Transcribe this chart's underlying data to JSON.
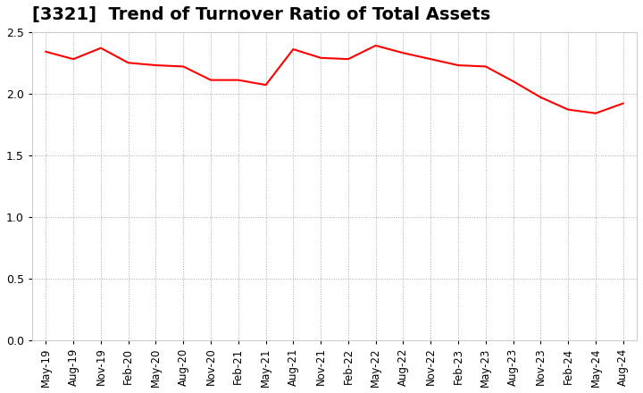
{
  "title": "[3321]  Trend of Turnover Ratio of Total Assets",
  "title_fontsize": 14,
  "line_color": "#FF0000",
  "line_width": 1.5,
  "background_color": "#FFFFFF",
  "plot_background_color": "#FFFFFF",
  "ylim": [
    0.0,
    2.5
  ],
  "yticks": [
    0.0,
    0.5,
    1.0,
    1.5,
    2.0,
    2.5
  ],
  "grid_color": "#AAAAAA",
  "grid_linestyle": "dotted",
  "x_labels": [
    "May-19",
    "Aug-19",
    "Nov-19",
    "Feb-20",
    "May-20",
    "Aug-20",
    "Nov-20",
    "Feb-21",
    "May-21",
    "Aug-21",
    "Nov-21",
    "Feb-22",
    "May-22",
    "Aug-22",
    "Nov-22",
    "Feb-23",
    "May-23",
    "Aug-23",
    "Nov-23",
    "Feb-24",
    "May-24",
    "Aug-24"
  ],
  "values": [
    2.34,
    2.28,
    2.37,
    2.25,
    2.23,
    2.22,
    2.11,
    2.11,
    2.07,
    2.36,
    2.29,
    2.28,
    2.39,
    2.33,
    2.28,
    2.23,
    2.22,
    2.1,
    1.97,
    1.87,
    1.84,
    1.92
  ]
}
